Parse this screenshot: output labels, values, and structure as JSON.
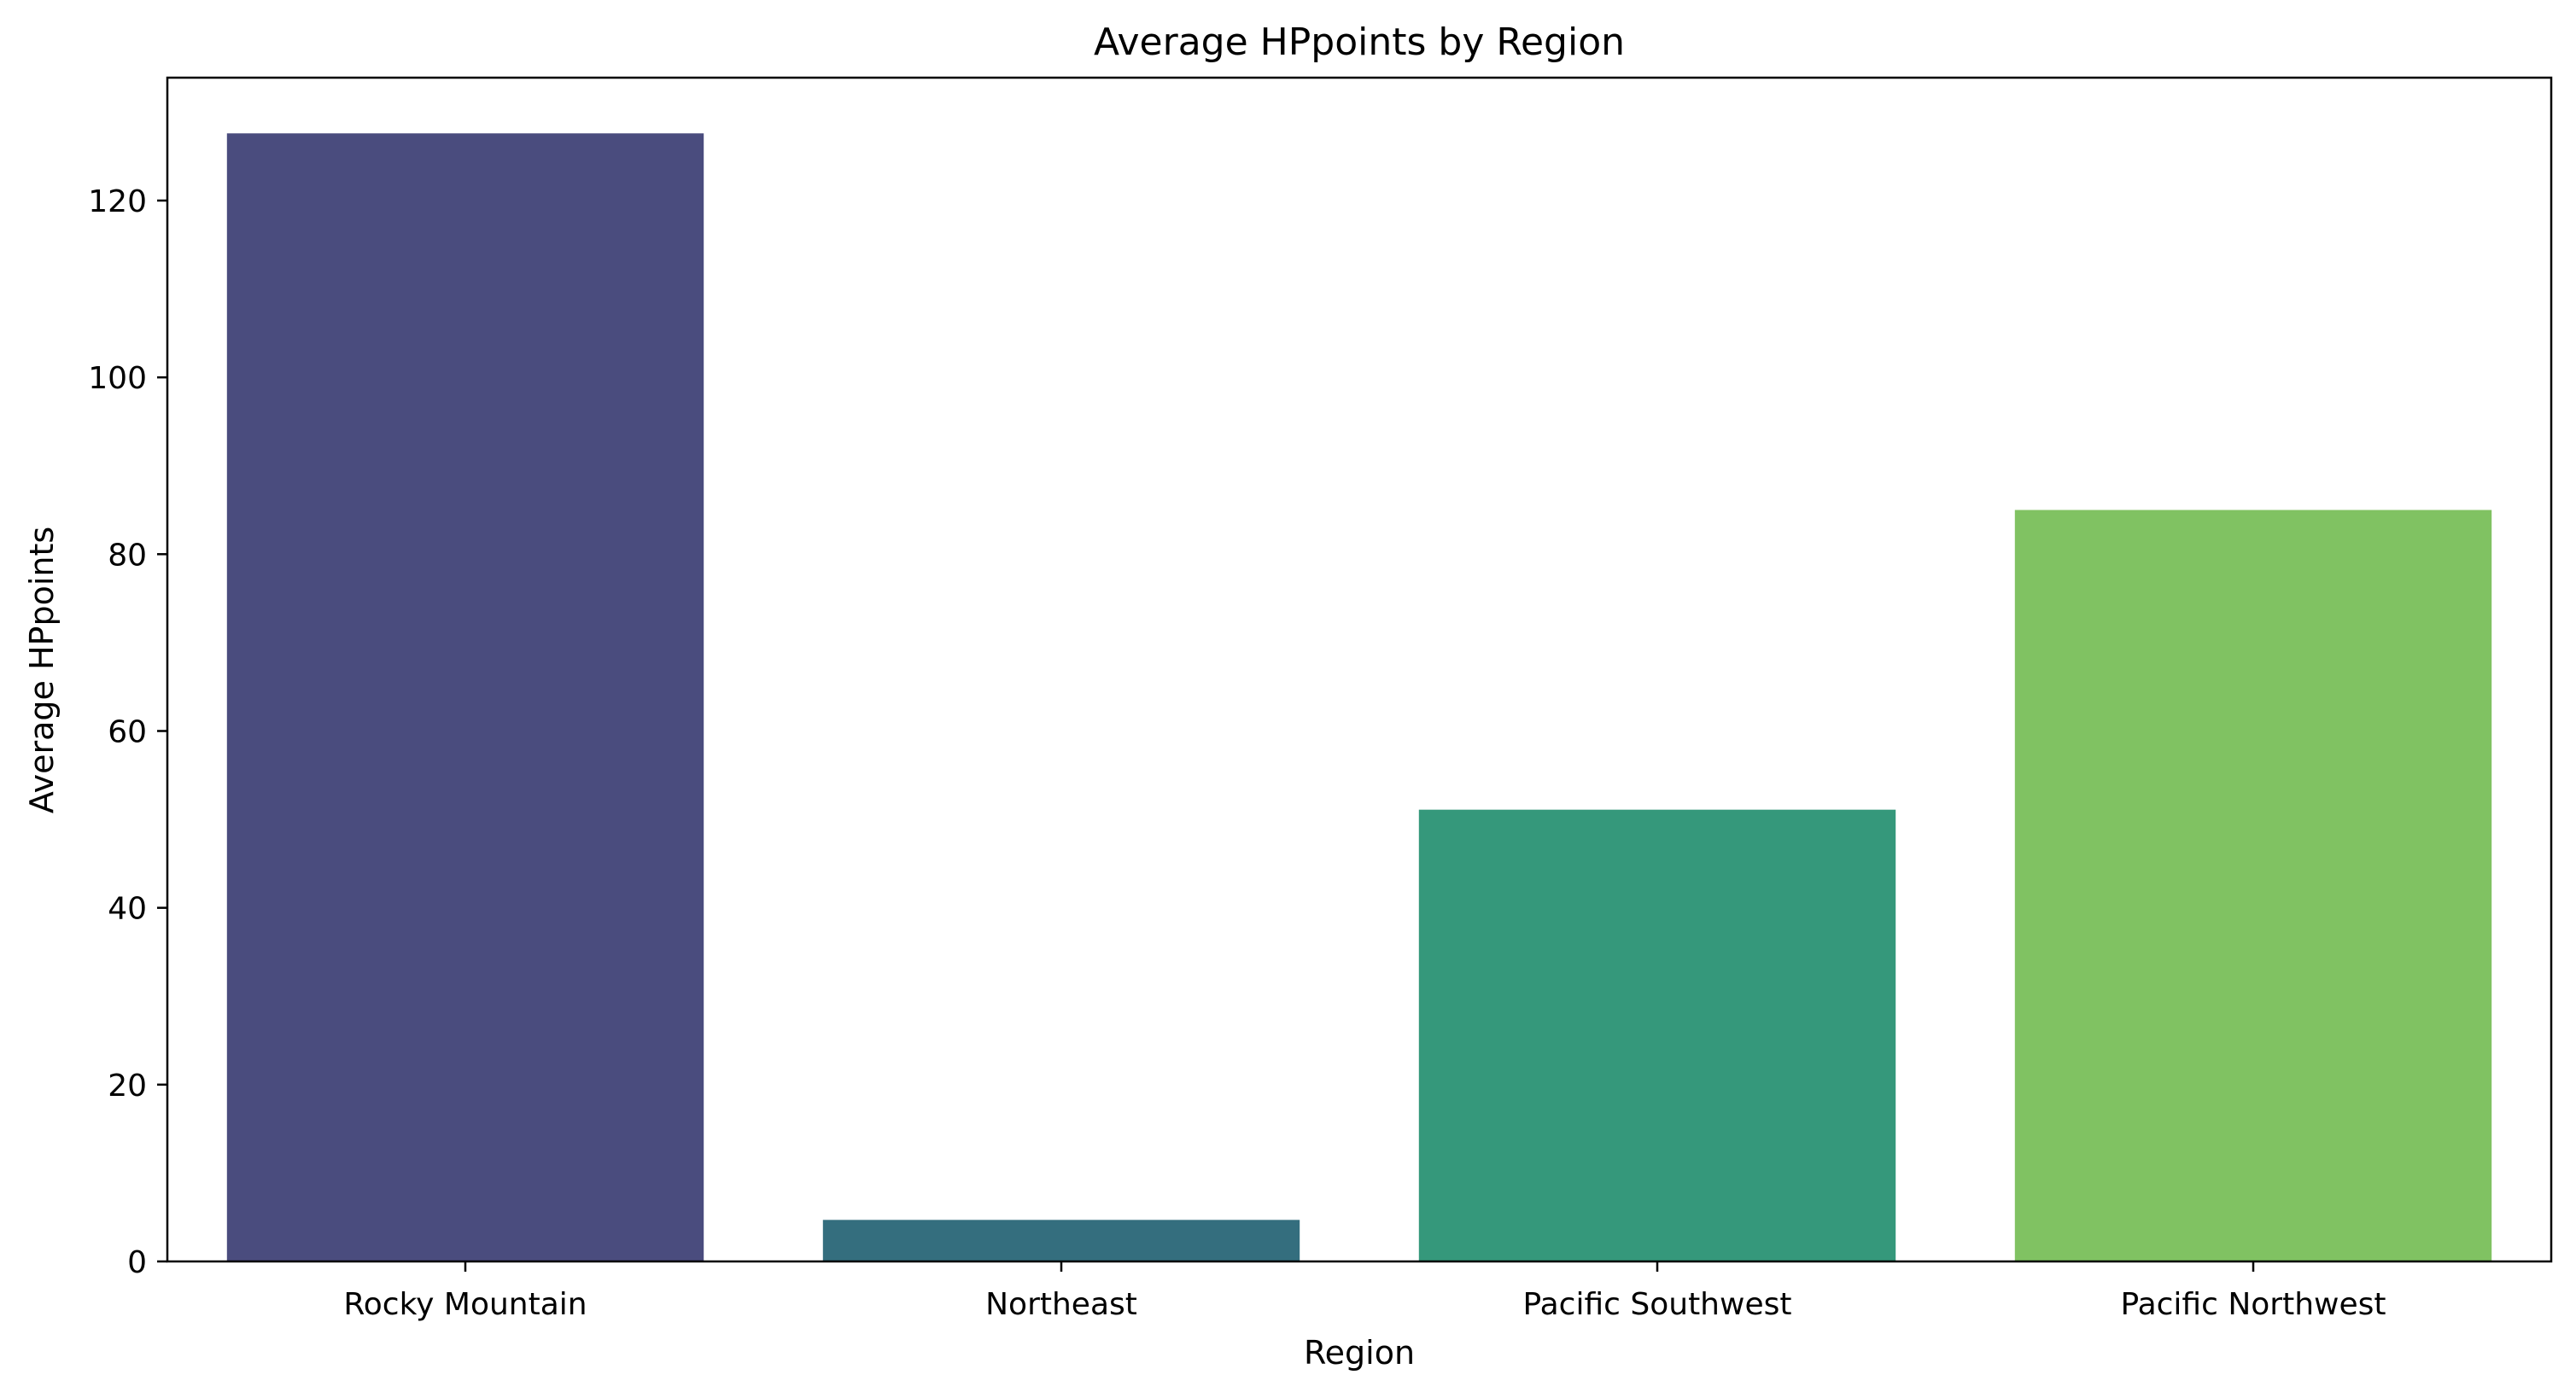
{
  "chart_data": {
    "type": "bar",
    "title": "Average HPpoints by Region",
    "xlabel": "Region",
    "ylabel": "Average HPpoints",
    "categories": [
      "Rocky Mountain",
      "Northeast",
      "Pacific Southwest",
      "Pacific Northwest"
    ],
    "values": [
      127.6,
      4.7,
      51.1,
      85.0
    ],
    "colors": [
      "#4a4c7e",
      "#346e7e",
      "#35987b",
      "#80c262"
    ],
    "ylim": [
      0,
      133.9
    ],
    "yticks": [
      0,
      20,
      40,
      60,
      80,
      100,
      120
    ],
    "grid": false,
    "legend": "none"
  }
}
